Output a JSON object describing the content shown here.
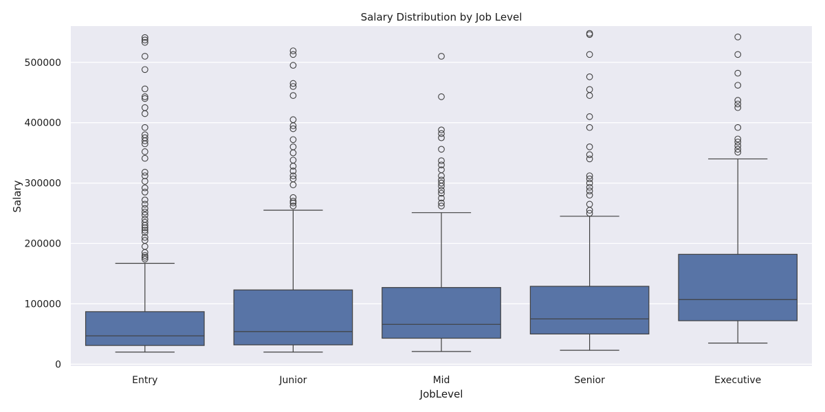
{
  "chart_data": {
    "type": "box",
    "title": "Salary Distribution by Job Level",
    "xlabel": "JobLevel",
    "ylabel": "Salary",
    "ylim": [
      -3000,
      560000
    ],
    "yticks": [
      0,
      100000,
      200000,
      300000,
      400000,
      500000
    ],
    "grid": true,
    "colors": {
      "background": "#eaeaf2",
      "grid": "#ffffff",
      "box": "#5874a6",
      "line": "#3f3f3f"
    },
    "boxes": [
      {
        "category": "Entry",
        "whisker_low": 20000,
        "q1": 31000,
        "median": 47000,
        "q3": 87000,
        "whisker_high": 167000,
        "outliers": [
          174000,
          177000,
          180000,
          185000,
          195000,
          205000,
          210000,
          218000,
          222000,
          226000,
          230000,
          235000,
          240000,
          247000,
          252000,
          258000,
          265000,
          272000,
          285000,
          292000,
          303000,
          312000,
          318000,
          341000,
          352000,
          365000,
          370000,
          375000,
          380000,
          392000,
          415000,
          425000,
          440000,
          443000,
          456000,
          488000,
          510000,
          533000,
          537000,
          541000
        ]
      },
      {
        "category": "Junior",
        "whisker_low": 20000,
        "q1": 32000,
        "median": 54000,
        "q3": 123000,
        "whisker_high": 255000,
        "outliers": [
          262000,
          267000,
          270000,
          276000,
          297000,
          307000,
          312000,
          320000,
          328000,
          338000,
          350000,
          360000,
          372000,
          390000,
          395000,
          405000,
          445000,
          460000,
          465000,
          495000,
          513000,
          519000
        ]
      },
      {
        "category": "Mid",
        "whisker_low": 21000,
        "q1": 43000,
        "median": 66000,
        "q3": 127000,
        "whisker_high": 251000,
        "outliers": [
          262000,
          267000,
          275000,
          283000,
          288000,
          295000,
          300000,
          305000,
          312000,
          322000,
          330000,
          337000,
          356000,
          375000,
          382000,
          388000,
          443000,
          510000
        ]
      },
      {
        "category": "Senior",
        "whisker_low": 23000,
        "q1": 50000,
        "median": 75000,
        "q3": 129000,
        "whisker_high": 245000,
        "outliers": [
          250000,
          255000,
          265000,
          280000,
          287000,
          293000,
          300000,
          307000,
          312000,
          340000,
          347000,
          360000,
          392000,
          410000,
          445000,
          455000,
          476000,
          513000,
          546000,
          548000
        ]
      },
      {
        "category": "Executive",
        "whisker_low": 35000,
        "q1": 72000,
        "median": 107000,
        "q3": 182000,
        "whisker_high": 340000,
        "outliers": [
          351000,
          356000,
          362000,
          368000,
          373000,
          392000,
          425000,
          431000,
          437000,
          462000,
          482000,
          513000,
          542000
        ]
      }
    ]
  }
}
